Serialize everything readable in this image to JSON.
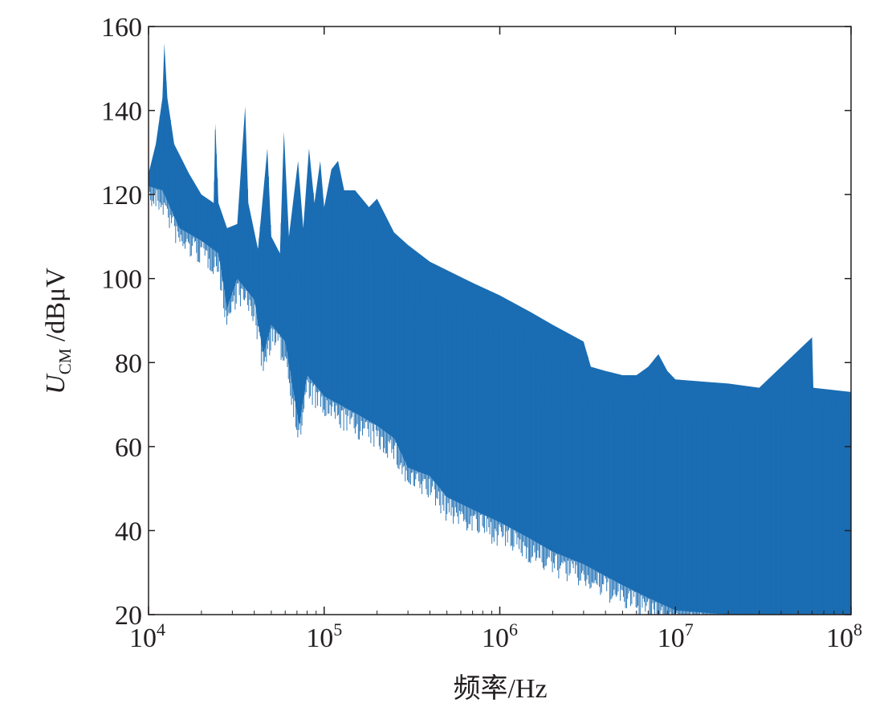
{
  "chart_data": {
    "type": "line",
    "xlabel": "频率/Hz",
    "ylabel": {
      "symbol": "U",
      "subscript": "CM",
      "unit": " /dBμV"
    },
    "x_scale": "log",
    "xlim": [
      10000,
      100000000
    ],
    "ylim": [
      20,
      160
    ],
    "x_ticks": [
      {
        "value": 10000,
        "base": "10",
        "exp": "4"
      },
      {
        "value": 100000,
        "base": "10",
        "exp": "5"
      },
      {
        "value": 1000000,
        "base": "10",
        "exp": "6"
      },
      {
        "value": 10000000,
        "base": "10",
        "exp": "7"
      },
      {
        "value": 100000000,
        "base": "10",
        "exp": "8"
      }
    ],
    "y_ticks": [
      "20",
      "40",
      "60",
      "80",
      "100",
      "120",
      "140",
      "160"
    ],
    "grid": false,
    "line_color": "#1a6db3",
    "series": [
      {
        "envelope_upper": [
          [
            10000,
            125
          ],
          [
            11000,
            132
          ],
          [
            12000,
            143
          ],
          [
            12300,
            156
          ],
          [
            12800,
            143
          ],
          [
            14000,
            132
          ],
          [
            17000,
            125
          ],
          [
            20000,
            120
          ],
          [
            23500,
            118
          ],
          [
            24000,
            137
          ],
          [
            25000,
            118
          ],
          [
            28000,
            112
          ],
          [
            32000,
            113
          ],
          [
            35500,
            141
          ],
          [
            37000,
            118
          ],
          [
            42000,
            107
          ],
          [
            47500,
            131
          ],
          [
            50000,
            110
          ],
          [
            56000,
            106
          ],
          [
            59000,
            135
          ],
          [
            63000,
            110
          ],
          [
            71000,
            128
          ],
          [
            76000,
            112
          ],
          [
            82000,
            131
          ],
          [
            88000,
            118
          ],
          [
            95000,
            128
          ],
          [
            100000,
            117
          ],
          [
            110000,
            126
          ],
          [
            120000,
            128
          ],
          [
            130000,
            121
          ],
          [
            150000,
            121
          ],
          [
            180000,
            117
          ],
          [
            200000,
            119
          ],
          [
            250000,
            111
          ],
          [
            300000,
            108
          ],
          [
            400000,
            104
          ],
          [
            500000,
            102
          ],
          [
            700000,
            99
          ],
          [
            1000000,
            96
          ],
          [
            1500000,
            92
          ],
          [
            2000000,
            89
          ],
          [
            3000000,
            85
          ],
          [
            3300000,
            79
          ],
          [
            4000000,
            78
          ],
          [
            5000000,
            77
          ],
          [
            6000000,
            77
          ],
          [
            7000000,
            79
          ],
          [
            8000000,
            82
          ],
          [
            9000000,
            78
          ],
          [
            10000000,
            76
          ],
          [
            20000000,
            75
          ],
          [
            30000000,
            74
          ],
          [
            60000000,
            86
          ],
          [
            61000000,
            74
          ],
          [
            100000000,
            73
          ]
        ],
        "envelope_lower": [
          [
            10000,
            122
          ],
          [
            12000,
            121
          ],
          [
            15000,
            112
          ],
          [
            20000,
            109
          ],
          [
            25000,
            106
          ],
          [
            28000,
            93
          ],
          [
            32000,
            100
          ],
          [
            40000,
            95
          ],
          [
            45000,
            82
          ],
          [
            50000,
            89
          ],
          [
            60000,
            85
          ],
          [
            72000,
            65
          ],
          [
            80000,
            77
          ],
          [
            100000,
            72
          ],
          [
            150000,
            68
          ],
          [
            200000,
            65
          ],
          [
            250000,
            62
          ],
          [
            300000,
            55
          ],
          [
            400000,
            53
          ],
          [
            500000,
            48
          ],
          [
            700000,
            45
          ],
          [
            1000000,
            42
          ],
          [
            1500000,
            38
          ],
          [
            2000000,
            35
          ],
          [
            3000000,
            32
          ],
          [
            5000000,
            27
          ],
          [
            7000000,
            24
          ],
          [
            10000000,
            21
          ],
          [
            20000000,
            20
          ],
          [
            50000000,
            20
          ],
          [
            100000000,
            20
          ]
        ]
      }
    ]
  }
}
